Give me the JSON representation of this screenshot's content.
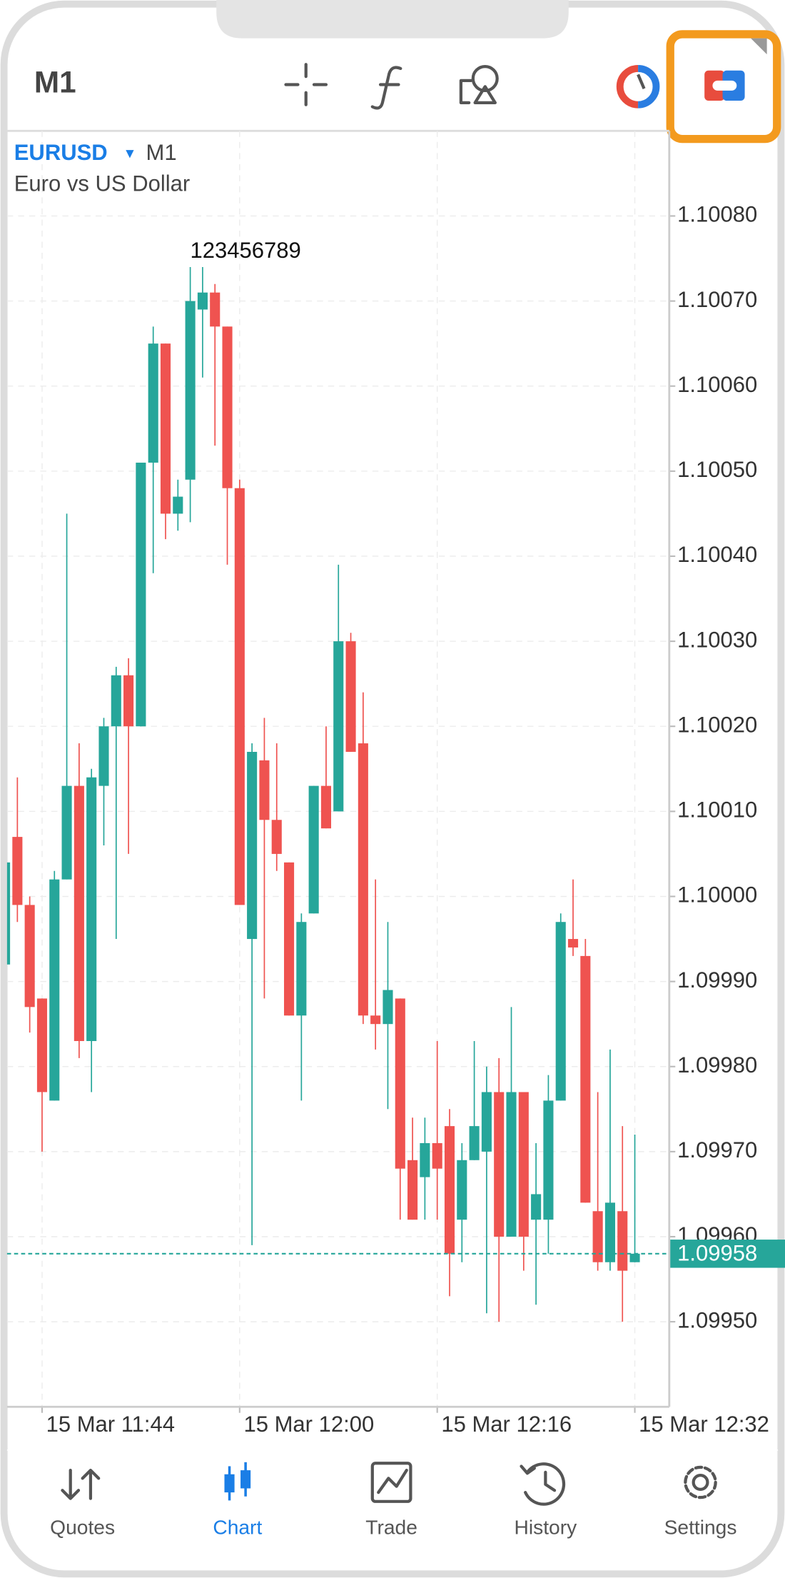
{
  "toolbar": {
    "timeframe": "M1"
  },
  "chart_data": {
    "type": "candlestick",
    "symbol": "EURUSD",
    "symbol_timeframe": "M1",
    "description": "Euro vs US Dollar",
    "annotation": "123456789",
    "up_color": "#26a69a",
    "down_color": "#ef5350",
    "grid": true,
    "categories": [
      null,
      null,
      null,
      "15 Mar 11:44",
      null,
      null,
      null,
      null,
      null,
      null,
      null,
      null,
      null,
      null,
      null,
      null,
      null,
      null,
      null,
      "15 Mar 12:00",
      null,
      null,
      null,
      null,
      null,
      null,
      null,
      null,
      null,
      null,
      null,
      null,
      null,
      null,
      null,
      "15 Mar 12:16",
      null,
      null,
      null,
      null,
      null,
      null,
      null,
      null,
      null,
      null,
      null,
      null,
      null,
      null,
      null,
      "15 Mar 12:32"
    ],
    "open": [
      1.09992,
      1.10007,
      1.09999,
      1.09988,
      1.09976,
      1.10002,
      1.10013,
      1.09983,
      1.10013,
      1.1002,
      1.10026,
      1.1002,
      1.10051,
      1.10065,
      1.10045,
      1.10049,
      1.10069,
      1.10071,
      1.10067,
      1.10048,
      1.09995,
      1.10016,
      1.10009,
      1.10004,
      1.09986,
      1.09998,
      1.10013,
      1.1001,
      1.1003,
      1.10018,
      1.09986,
      1.09985,
      1.09988,
      1.09969,
      1.09967,
      1.09971,
      1.09973,
      1.09962,
      1.09969,
      1.0997,
      1.09977,
      1.0996,
      1.09977,
      1.09962,
      1.09962,
      1.09976,
      1.09995,
      1.09993,
      1.09963,
      1.09957,
      1.09963,
      1.09957
    ],
    "high": [
      1.10006,
      1.10014,
      1.1,
      1.09988,
      1.10003,
      1.10045,
      1.10018,
      1.10015,
      1.10021,
      1.10027,
      1.10028,
      1.10051,
      1.10067,
      1.10065,
      1.10049,
      1.10074,
      1.10074,
      1.10072,
      1.10067,
      1.10049,
      1.10018,
      1.10021,
      1.10018,
      1.10004,
      1.09998,
      1.10013,
      1.1002,
      1.10039,
      1.10031,
      1.10024,
      1.10002,
      1.09997,
      1.09988,
      1.09974,
      1.09974,
      1.09983,
      1.09975,
      1.09971,
      1.09983,
      1.0998,
      1.09981,
      1.09987,
      1.09977,
      1.09971,
      1.09979,
      1.09998,
      1.10002,
      1.09995,
      1.09977,
      1.09982,
      1.09973,
      1.09972
    ],
    "low": [
      1.0999,
      1.09997,
      1.09984,
      1.0997,
      1.09976,
      1.10002,
      1.09981,
      1.09977,
      1.10006,
      1.09995,
      1.10005,
      1.1002,
      1.10038,
      1.10042,
      1.10043,
      1.10044,
      1.10061,
      1.10053,
      1.10039,
      1.09999,
      1.09959,
      1.09988,
      1.10003,
      1.09986,
      1.09976,
      1.09998,
      1.10008,
      1.1001,
      1.10017,
      1.09985,
      1.09982,
      1.09975,
      1.09962,
      1.09962,
      1.09962,
      1.09962,
      1.09953,
      1.09957,
      1.09969,
      1.09951,
      1.0995,
      1.0996,
      1.09956,
      1.09952,
      1.09958,
      1.09976,
      1.09993,
      1.09964,
      1.09956,
      1.09956,
      1.0995,
      1.09957
    ],
    "close": [
      1.10004,
      1.09999,
      1.09987,
      1.09977,
      1.10002,
      1.10013,
      1.09983,
      1.10014,
      1.1002,
      1.10026,
      1.1002,
      1.10051,
      1.10065,
      1.10045,
      1.10047,
      1.1007,
      1.10071,
      1.10067,
      1.10048,
      1.09999,
      1.10017,
      1.10009,
      1.10005,
      1.09986,
      1.09997,
      1.10013,
      1.10008,
      1.1003,
      1.10017,
      1.09986,
      1.09985,
      1.09989,
      1.09968,
      1.09962,
      1.09971,
      1.09968,
      1.09958,
      1.09969,
      1.09973,
      1.09977,
      1.0996,
      1.09977,
      1.0996,
      1.09965,
      1.09976,
      1.09997,
      1.09994,
      1.09964,
      1.09957,
      1.09964,
      1.09956,
      1.09958
    ],
    "last_price": 1.09958,
    "ylim": [
      1.0994,
      1.1009
    ],
    "yticks": [
      {
        "value": 1.0995,
        "label": "1.09950"
      },
      {
        "value": 1.0996,
        "label": "1.09960"
      },
      {
        "value": 1.0997,
        "label": "1.09970"
      },
      {
        "value": 1.0998,
        "label": "1.09980"
      },
      {
        "value": 1.0999,
        "label": "1.09990"
      },
      {
        "value": 1.1,
        "label": "1.10000"
      },
      {
        "value": 1.1001,
        "label": "1.10010"
      },
      {
        "value": 1.1002,
        "label": "1.10020"
      },
      {
        "value": 1.1003,
        "label": "1.10030"
      },
      {
        "value": 1.1004,
        "label": "1.10040"
      },
      {
        "value": 1.1005,
        "label": "1.10050"
      },
      {
        "value": 1.1006,
        "label": "1.10060"
      },
      {
        "value": 1.1007,
        "label": "1.10070"
      },
      {
        "value": 1.1008,
        "label": "1.10080"
      }
    ]
  },
  "tabs": [
    "Quotes",
    "Chart",
    "Trade",
    "History",
    "Settings"
  ]
}
